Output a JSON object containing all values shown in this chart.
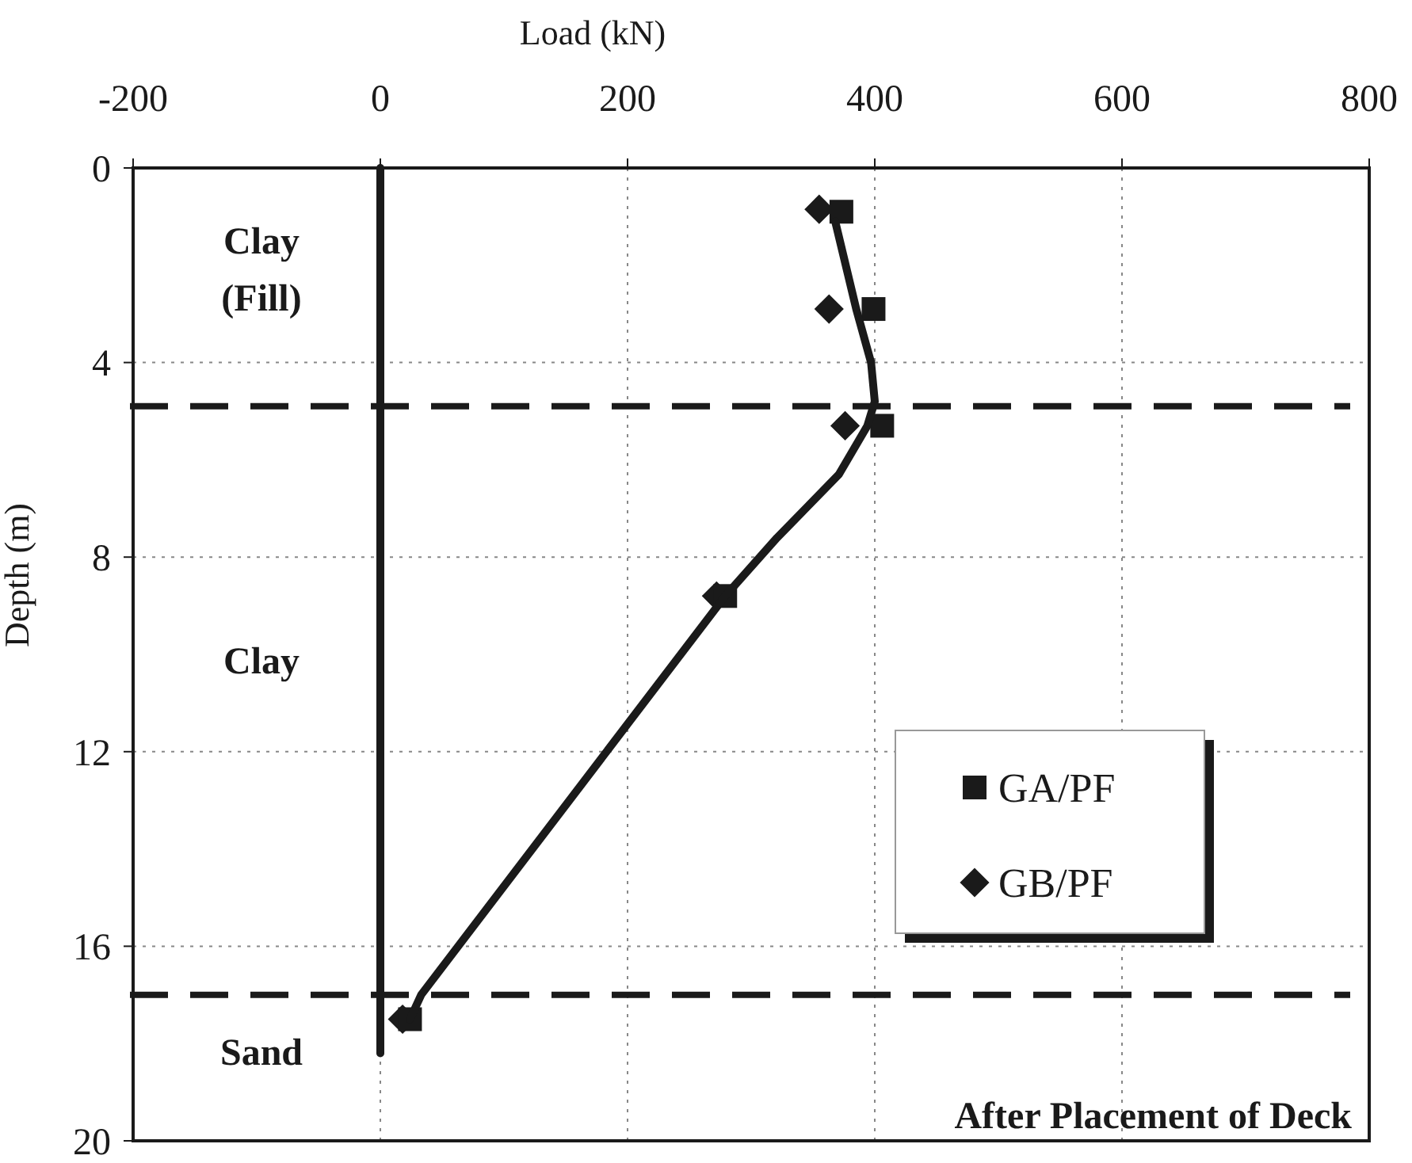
{
  "chart_data": {
    "type": "scatter",
    "xlabel": "Load (kN)",
    "ylabel": "Depth (m)",
    "xlim": [
      -200,
      800
    ],
    "xticks": [
      -200,
      0,
      200,
      400,
      600,
      800
    ],
    "ylim": [
      20,
      0
    ],
    "yticks": [
      0,
      4,
      8,
      12,
      16,
      20
    ],
    "grid": true,
    "legend": "right",
    "series": [
      {
        "type": "line",
        "color": "#1a1a1a",
        "marker": "none",
        "x": [
          0,
          0
        ],
        "values": [
          0,
          18.2
        ]
      },
      {
        "type": "line",
        "color": "#1a1a1a",
        "marker": "none",
        "x": [
          368,
          385,
          397,
          400,
          394,
          371,
          321,
          279,
          33,
          24
        ],
        "values": [
          1.1,
          2.9,
          4.0,
          4.8,
          5.3,
          6.3,
          7.6,
          8.8,
          17.0,
          17.5
        ]
      },
      {
        "name": "GA/PF",
        "color": "#1a1a1a",
        "marker": "square",
        "x": [
          373,
          399,
          406,
          279,
          24
        ],
        "values": [
          0.9,
          2.9,
          5.3,
          8.8,
          17.5
        ]
      },
      {
        "name": "GB/PF",
        "color": "#1a1a1a",
        "marker": "diamond",
        "x": [
          355,
          363,
          376,
          272,
          18
        ],
        "values": [
          0.85,
          2.9,
          5.3,
          8.8,
          17.5
        ]
      }
    ],
    "ref_lines": [
      {
        "axis": "y",
        "value": 4.9,
        "color": "#1a1a1a",
        "line_style": "dashed"
      },
      {
        "axis": "y",
        "value": 17.0,
        "color": "#1a1a1a",
        "line_style": "dashed"
      }
    ],
    "annotations": [
      "Clay (Fill)",
      "Clay",
      "Sand",
      "After Placement of Deck"
    ]
  }
}
